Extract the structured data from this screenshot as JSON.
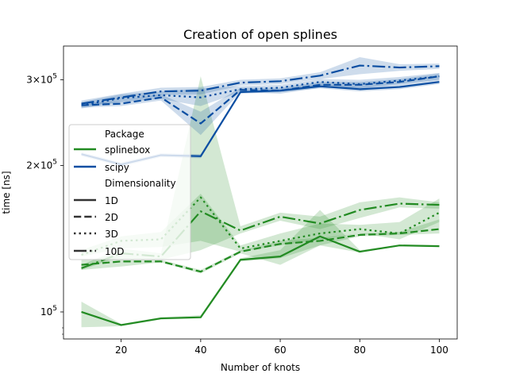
{
  "chart_data": {
    "type": "line",
    "title": "Creation of open splines",
    "xlabel": "Number of knots",
    "ylabel": "time [ns]",
    "x": [
      10,
      20,
      30,
      40,
      50,
      60,
      70,
      80,
      90,
      100
    ],
    "xlim": [
      5.5,
      104.5
    ],
    "ylim": [
      88000,
      352000
    ],
    "yscale": "log",
    "x_ticks": [
      20,
      40,
      60,
      80,
      100
    ],
    "y_ticks": [
      {
        "value": 100000,
        "mantissa": "10",
        "exponent": "5",
        "has_times": false
      },
      {
        "value": 200000,
        "mantissa": "2×10",
        "exponent": "5",
        "has_times": true
      },
      {
        "value": 300000,
        "mantissa": "3×10",
        "exponent": "5",
        "has_times": true
      }
    ],
    "grid": false,
    "legend_position": "center-left",
    "legend": {
      "package_title": "Package",
      "packages": [
        {
          "label": "splinebox",
          "color": "#228b22"
        },
        {
          "label": "scipy",
          "color": "#0b4ea2"
        }
      ],
      "dimensionality_title": "Dimensionality",
      "dimensionalities": [
        {
          "label": "1D",
          "style": "solid"
        },
        {
          "label": "2D",
          "style": "dashed"
        },
        {
          "label": "3D",
          "style": "dotted"
        },
        {
          "label": "10D",
          "style": "dashdot"
        }
      ]
    },
    "series": [
      {
        "package": "splinebox",
        "dim": "1D",
        "color": "#228b22",
        "style": "solid",
        "values": [
          100000,
          94000,
          97000,
          97500,
          128000,
          130000,
          143000,
          133000,
          137000,
          136500
        ],
        "band_low": [
          93000,
          93500,
          96500,
          97000,
          127000,
          129000,
          137000,
          132500,
          136500,
          136000
        ],
        "band_high": [
          105000,
          94500,
          97500,
          98500,
          129000,
          134000,
          162000,
          134000,
          137500,
          137000
        ]
      },
      {
        "package": "splinebox",
        "dim": "2D",
        "color": "#228b22",
        "style": "dashed",
        "values": [
          125000,
          127000,
          127000,
          121000,
          133000,
          138000,
          140000,
          144000,
          145000,
          148000
        ],
        "band_low": [
          122000,
          124000,
          126500,
          120000,
          132000,
          125000,
          137000,
          143000,
          144000,
          145000
        ],
        "band_high": [
          128000,
          130000,
          128000,
          122000,
          134000,
          140000,
          142000,
          145000,
          146000,
          155000
        ]
      },
      {
        "package": "splinebox",
        "dim": "3D",
        "color": "#228b22",
        "style": "dotted",
        "values": [
          131000,
          140000,
          141000,
          172000,
          135000,
          140000,
          145000,
          148000,
          145000,
          160000
        ],
        "band_low": [
          130000,
          135000,
          136000,
          140000,
          133000,
          137000,
          141000,
          145000,
          141000,
          153000
        ],
        "band_high": [
          134000,
          143000,
          146000,
          175000,
          137000,
          145000,
          152000,
          151000,
          153000,
          171000
        ]
      },
      {
        "package": "splinebox",
        "dim": "10D",
        "color": "#228b22",
        "style": "dashdot",
        "values": [
          123000,
          132000,
          130000,
          161000,
          147000,
          157000,
          152000,
          162000,
          167000,
          166000
        ],
        "band_low": [
          122000,
          130000,
          128000,
          134000,
          145000,
          154000,
          148000,
          156000,
          164000,
          163000
        ],
        "band_high": [
          125000,
          135000,
          132000,
          305000,
          150000,
          160000,
          157000,
          168000,
          172000,
          168000
        ]
      },
      {
        "package": "scipy",
        "dim": "1D",
        "color": "#0b4ea2",
        "style": "solid",
        "values": [
          211000,
          201000,
          210000,
          209000,
          283000,
          285000,
          291000,
          287000,
          290000,
          297000
        ],
        "band_low": [
          209000,
          199000,
          208000,
          207000,
          281000,
          283000,
          288000,
          284000,
          287000,
          294000
        ],
        "band_high": [
          213000,
          203000,
          212000,
          211000,
          285000,
          287000,
          294000,
          290000,
          293000,
          300000
        ]
      },
      {
        "package": "scipy",
        "dim": "2D",
        "color": "#0b4ea2",
        "style": "dashed",
        "values": [
          266000,
          268000,
          276000,
          244000,
          286000,
          285000,
          293000,
          293000,
          297000,
          305000
        ],
        "band_low": [
          263000,
          265000,
          272000,
          231000,
          283000,
          281000,
          289000,
          289000,
          293000,
          300000
        ],
        "band_high": [
          269000,
          271000,
          280000,
          258000,
          289000,
          289000,
          297000,
          297000,
          301000,
          309000
        ]
      },
      {
        "package": "scipy",
        "dim": "3D",
        "color": "#0b4ea2",
        "style": "dotted",
        "values": [
          266000,
          275000,
          279000,
          276000,
          287000,
          289000,
          297000,
          294000,
          299000,
          305000
        ],
        "band_low": [
          262000,
          270000,
          274000,
          265000,
          283000,
          285000,
          293000,
          288000,
          294000,
          300000
        ],
        "band_high": [
          270000,
          280000,
          284000,
          288000,
          291000,
          293000,
          301000,
          300000,
          304000,
          310000
        ]
      },
      {
        "package": "scipy",
        "dim": "10D",
        "color": "#0b4ea2",
        "style": "dashdot",
        "values": [
          268000,
          276000,
          284000,
          285000,
          296000,
          298000,
          306000,
          321000,
          318000,
          320000
        ],
        "band_low": [
          264000,
          271000,
          279000,
          280000,
          292000,
          294000,
          301000,
          308000,
          313000,
          316000
        ],
        "band_high": [
          272000,
          281000,
          289000,
          290000,
          300000,
          302000,
          311000,
          334000,
          323000,
          324000
        ]
      }
    ]
  }
}
